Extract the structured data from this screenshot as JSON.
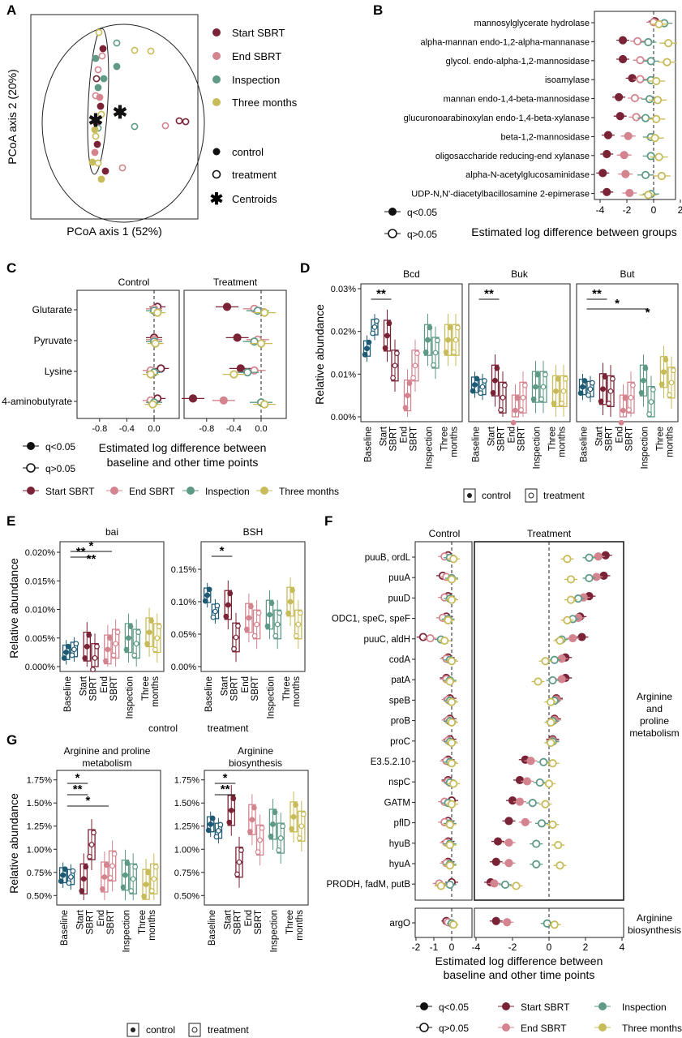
{
  "colors": {
    "start": "#7a2336",
    "end": "#d4848f",
    "insp": "#5e9a86",
    "three": "#c8bb59",
    "base": "#1e5a74",
    "dark": "#222222"
  },
  "panelA": {
    "letter": "A",
    "xlabel": "PCoA axis 1 (52%)",
    "ylabel": "PCoA axis 2 (20%)",
    "legend_groups": [
      "Start SBRT",
      "End SBRT",
      "Inspection",
      "Three months"
    ],
    "legend_types": [
      "control",
      "treatment",
      "Centroids"
    ]
  },
  "panelB": {
    "letter": "B",
    "xlabel": "Estimated log difference between groups",
    "xticks": [
      "-4",
      "-2",
      "0",
      "2"
    ],
    "legend": [
      "q<0.05",
      "q>0.05"
    ],
    "chart_data": {
      "type": "scatter",
      "x_range": [
        -5,
        3
      ],
      "categories": [
        "mannosylglycerate hydrolase",
        "alpha-mannan endo-1,2-alpha-mannanase",
        "glycol. endo-alpha-1,2-mannosidase",
        "isoamylase",
        "mannan endo-1,4-beta-mannosidase",
        "glucuronoarabinoxylan endo-1,4-beta-xylanase",
        "beta-1,2-mannosidase",
        "oligosaccharide reducing-end xylanase",
        "alpha-N-acetylglucosaminidase",
        "UDP-N,N'-diacetylbacillosamine 2-epimerase"
      ],
      "series": [
        {
          "name": "Start SBRT",
          "values": [
            0.1,
            -2.3,
            -2.3,
            -1.6,
            -2.6,
            -2.5,
            -3.4,
            -3.5,
            -3.8,
            -3.5
          ]
        },
        {
          "name": "End SBRT",
          "values": [
            0.0,
            -1.2,
            -1.0,
            -1.0,
            -1.4,
            -1.3,
            -1.9,
            -2.2,
            -2.1,
            -1.8
          ]
        },
        {
          "name": "Inspection",
          "values": [
            0.8,
            -0.4,
            -0.2,
            -0.2,
            -0.3,
            -0.6,
            -0.2,
            -0.2,
            -0.6,
            -0.2
          ]
        },
        {
          "name": "Three months",
          "values": [
            0.4,
            1.1,
            1.0,
            0.2,
            0.3,
            0.2,
            0.1,
            0.4,
            0.6,
            -0.4
          ]
        }
      ]
    }
  },
  "panelC": {
    "letter": "C",
    "strips": [
      "Control",
      "Treatment"
    ],
    "rows": [
      "Glutarate",
      "Pyruvate",
      "Lysine",
      "4-aminobutyrate"
    ],
    "xticks": [
      "-0.8",
      "-0.4",
      "0.0"
    ],
    "xlabel": "Estimated log difference between baseline and other time points",
    "xlabel_lines": [
      "Estimated log difference between",
      "baseline and other time points"
    ],
    "legend_sig": [
      "q<0.05",
      "q>0.05"
    ],
    "legend_groups": [
      "Start SBRT",
      "End SBRT",
      "Inspection",
      "Three months"
    ],
    "chart_data": {
      "type": "scatter",
      "x_range": [
        -1.1,
        0.2
      ],
      "facets": [
        {
          "name": "Control",
          "series": [
            {
              "name": "Start SBRT",
              "values": [
                0.05,
                0.0,
                0.1,
                0.05
              ]
            },
            {
              "name": "End SBRT",
              "values": [
                0.0,
                0.0,
                -0.05,
                -0.05
              ]
            },
            {
              "name": "Inspection",
              "values": [
                0.0,
                0.0,
                0.0,
                0.0
              ]
            },
            {
              "name": "Three months",
              "values": [
                0.05,
                0.02,
                -0.05,
                -0.02
              ]
            }
          ]
        },
        {
          "name": "Treatment",
          "series": [
            {
              "name": "Start SBRT",
              "values": [
                -0.5,
                -0.35,
                -0.3,
                -1.0
              ]
            },
            {
              "name": "End SBRT",
              "values": [
                -0.1,
                -0.05,
                -0.1,
                -0.55
              ]
            },
            {
              "name": "Inspection",
              "values": [
                -0.05,
                -0.1,
                -0.2,
                0.0
              ]
            },
            {
              "name": "Three months",
              "values": [
                0.05,
                0.0,
                -0.4,
                0.05
              ]
            }
          ]
        }
      ]
    }
  },
  "panelD": {
    "letter": "D",
    "ylabel": "Relative abundance",
    "yticks": [
      "0.03%",
      "0.02%",
      "0.01%",
      "0.00%"
    ],
    "facets": [
      "Bcd",
      "Buk",
      "But"
    ],
    "xcats": [
      "Baseline",
      "Start SBRT",
      "End SBRT",
      "Inspection",
      "Three months"
    ],
    "xcat_lines": [
      [
        "Baseline"
      ],
      [
        "Start",
        "SBRT"
      ],
      [
        "End",
        "SBRT"
      ],
      [
        "Inspection"
      ],
      [
        "Three",
        "months"
      ]
    ],
    "stars": [
      "**",
      "**",
      "**",
      "*",
      "*"
    ],
    "legend": [
      "control",
      "treatment"
    ],
    "chart_data": {
      "type": "box",
      "y_range": [
        0,
        0.03
      ],
      "facets": [
        {
          "name": "Bcd",
          "medians": {
            "control": [
              0.016,
              0.019,
              0.005,
              0.018,
              0.018
            ],
            "treatment": [
              0.021,
              0.012,
              0.012,
              0.015,
              0.018
            ]
          }
        },
        {
          "name": "Buk",
          "medians": {
            "control": [
              0.0075,
              0.0085,
              0.0015,
              0.007,
              0.006
            ],
            "treatment": [
              0.007,
              0.0045,
              0.0045,
              0.007,
              0.006
            ]
          }
        },
        {
          "name": "But",
          "medians": {
            "control": [
              0.007,
              0.0065,
              0.0015,
              0.0085,
              0.0105
            ],
            "treatment": [
              0.0065,
              0.006,
              0.0045,
              0.0035,
              0.008
            ]
          }
        }
      ]
    }
  },
  "panelE": {
    "letter": "E",
    "ylabel": "Relative abundance",
    "facets": [
      "bai",
      "BSH"
    ],
    "yticks_bai": [
      "0.020%",
      "0.015%",
      "0.010%",
      "0.005%",
      "0.000%"
    ],
    "yticks_bsh": [
      "0.15%",
      "0.10%",
      "0.05%",
      "0.00%"
    ],
    "xcat_lines": [
      [
        "Baseline"
      ],
      [
        "Start",
        "SBRT"
      ],
      [
        "End",
        "SBRT"
      ],
      [
        "Inspection"
      ],
      [
        "Three",
        "months"
      ]
    ],
    "stars": [
      "*",
      "**",
      "**",
      "*"
    ],
    "legend": [
      "control",
      "treatment"
    ],
    "chart_data": {
      "type": "box",
      "facets": [
        {
          "name": "bai",
          "y_range": [
            0,
            0.021
          ],
          "medians": {
            "control": [
              0.0025,
              0.0035,
              0.003,
              0.005,
              0.006
            ],
            "treatment": [
              0.003,
              0.0015,
              0.004,
              0.004,
              0.005
            ]
          }
        },
        {
          "name": "BSH",
          "y_range": [
            0,
            0.185
          ],
          "medians": {
            "control": [
              0.11,
              0.095,
              0.075,
              0.08,
              0.1
            ],
            "treatment": [
              0.085,
              0.045,
              0.065,
              0.065,
              0.065
            ]
          }
        }
      ]
    }
  },
  "panelF": {
    "letter": "F",
    "strips": [
      "Control",
      "Treatment"
    ],
    "genes": [
      "puuB, ordL",
      "puuA",
      "puuD",
      "ODC1, speC, speF",
      "puuC, aldH",
      "codA",
      "patA",
      "speB",
      "proB",
      "proC",
      "E3.5.2.10",
      "nspC",
      "GATM",
      "pflD",
      "hyuB",
      "hyuA",
      "PRODH, fadM, putB"
    ],
    "gene2": [
      "argO"
    ],
    "right_label_1": [
      "Arginine",
      "and",
      "proline",
      "metabolism"
    ],
    "right_label_2": [
      "Arginine",
      "biosynthesis"
    ],
    "xticks_ctrl": [
      "-2",
      "-1",
      "0"
    ],
    "xticks_trt": [
      "-4",
      "-2",
      "0",
      "2",
      "4"
    ],
    "xlabel_lines": [
      "Estimated log difference between",
      "baseline and other time points"
    ],
    "legend_sig": [
      "q<0.05",
      "q>0.05"
    ],
    "legend_groups": [
      "Start SBRT",
      "End SBRT",
      "Inspection",
      "Three months"
    ],
    "chart_data": {
      "type": "scatter",
      "facets": [
        {
          "name": "Control",
          "x_range": [
            -2.3,
            0.6
          ],
          "series": [
            {
              "name": "Start SBRT",
              "values": [
                -0.2,
                -0.5,
                -0.2,
                -0.3,
                -1.6,
                -0.2,
                -0.3,
                -0.1,
                -0.1,
                -0.1,
                -0.2,
                -0.2,
                0.0,
                -0.2,
                -0.2,
                -0.2,
                0.0
              ]
            },
            {
              "name": "End SBRT",
              "values": [
                -0.4,
                -0.3,
                -0.4,
                -0.5,
                -1.2,
                -0.3,
                -0.3,
                -0.2,
                -0.2,
                -0.2,
                -0.3,
                -0.2,
                -0.4,
                -0.4,
                -0.3,
                -0.3,
                -0.7
              ]
            },
            {
              "name": "Inspection",
              "values": [
                -0.1,
                0.0,
                -0.1,
                -0.2,
                -0.6,
                -0.1,
                -0.1,
                -0.1,
                -0.1,
                -0.1,
                -0.1,
                -0.1,
                -0.2,
                -0.1,
                -0.1,
                -0.1,
                -0.1
              ]
            },
            {
              "name": "Three months",
              "values": [
                0.1,
                0.0,
                0.0,
                -0.2,
                -0.4,
                0.0,
                -0.1,
                0.0,
                0.0,
                0.0,
                0.0,
                0.1,
                0.0,
                -0.1,
                -0.1,
                -0.1,
                -0.6
              ]
            }
          ]
        },
        {
          "name": "Treatment",
          "x_range": [
            -4.2,
            4.2
          ],
          "series": [
            {
              "name": "Start SBRT",
              "values": [
                3.1,
                3.0,
                2.2,
                1.7,
                1.8,
                0.9,
                0.9,
                0.4,
                0.3,
                0.2,
                -1.3,
                -1.6,
                -2.0,
                -2.2,
                -2.8,
                -2.9,
                -3.2
              ]
            },
            {
              "name": "End SBRT",
              "values": [
                2.7,
                2.6,
                1.9,
                1.6,
                1.3,
                0.7,
                0.7,
                0.4,
                0.3,
                0.2,
                -1.0,
                -1.2,
                -1.6,
                -1.3,
                -2.2,
                -2.2,
                -3.0
              ]
            },
            {
              "name": "Inspection",
              "values": [
                2.2,
                2.2,
                1.6,
                1.3,
                0.7,
                0.3,
                0.2,
                0.3,
                0.2,
                0.2,
                -0.3,
                -0.5,
                -0.9,
                -0.4,
                -0.7,
                -0.7,
                -2.4
              ]
            },
            {
              "name": "Three months",
              "values": [
                1.0,
                1.2,
                1.2,
                1.0,
                0.6,
                -0.2,
                -0.6,
                0.1,
                0.1,
                0.1,
                0.2,
                0.0,
                -0.2,
                0.2,
                0.5,
                0.6,
                -1.8
              ]
            }
          ]
        },
        {
          "name": "Arginine biosynthesis",
          "series": [
            {
              "name": "Start SBRT",
              "control": -0.3,
              "treatment": -2.9
            },
            {
              "name": "End SBRT",
              "control": -0.2,
              "treatment": -2.3
            },
            {
              "name": "Inspection",
              "control": 0.0,
              "treatment": -0.1
            },
            {
              "name": "Three months",
              "control": 0.1,
              "treatment": 0.3
            }
          ]
        }
      ]
    }
  },
  "panelG": {
    "letter": "G",
    "ylabel": "Relative abundance",
    "facets": [
      [
        "Arginine and proline",
        "metabolism"
      ],
      [
        "Arginine",
        "biosynthesis"
      ]
    ],
    "yticks": [
      "1.75%",
      "1.50%",
      "1.25%",
      "1.00%",
      "0.75%",
      "0.50%"
    ],
    "xcat_lines": [
      [
        "Baseline"
      ],
      [
        "Start",
        "SBRT"
      ],
      [
        "End",
        "SBRT"
      ],
      [
        "Inspection"
      ],
      [
        "Three",
        "months"
      ]
    ],
    "stars": [
      "*",
      "**",
      "*",
      "*",
      "**"
    ],
    "legend": [
      "control",
      "treatment"
    ],
    "chart_data": {
      "type": "box",
      "y_range": [
        0.45,
        1.8
      ],
      "facets": [
        {
          "name": "Arginine and proline metabolism",
          "medians": {
            "control": [
              0.72,
              0.68,
              0.7,
              0.72,
              0.62
            ],
            "treatment": [
              0.7,
              1.05,
              0.82,
              0.68,
              0.68
            ]
          }
        },
        {
          "name": "Arginine biosynthesis",
          "medians": {
            "control": [
              1.27,
              1.42,
              1.32,
              1.27,
              1.35
            ],
            "treatment": [
              1.2,
              0.86,
              1.1,
              1.12,
              1.25
            ]
          }
        }
      ]
    }
  }
}
